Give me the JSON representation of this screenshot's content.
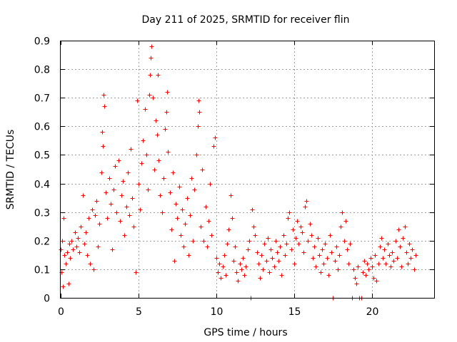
{
  "chart_data": {
    "type": "scatter",
    "title": "Day 211 of 2025, SRMTID for receiver flin",
    "xlabel": "GPS time / hours",
    "ylabel": "SRMTID / TECUs",
    "xlim": [
      0,
      24
    ],
    "ylim": [
      0,
      0.9
    ],
    "x_ticks": [
      0,
      5,
      10,
      15,
      20
    ],
    "x_tick_labels": [
      "0",
      "5",
      "10",
      "15",
      "20"
    ],
    "y_ticks": [
      0,
      0.1,
      0.2,
      0.3,
      0.4,
      0.5,
      0.6,
      0.7,
      0.8,
      0.9
    ],
    "y_tick_labels": [
      "0",
      "0.1",
      "0.2",
      "0.3",
      "0.4",
      "0.5",
      "0.6",
      "0.7",
      "0.8",
      "0.9"
    ],
    "grid": true,
    "marker": "plus",
    "color": "#ff0000",
    "series": [
      {
        "name": "SRMTID",
        "points": [
          [
            0.0,
            0.17
          ],
          [
            0.05,
            0.09
          ],
          [
            0.1,
            0.2
          ],
          [
            0.15,
            0.04
          ],
          [
            0.2,
            0.28
          ],
          [
            0.25,
            0.15
          ],
          [
            0.3,
            0.12
          ],
          [
            0.4,
            0.16
          ],
          [
            0.5,
            0.05
          ],
          [
            0.55,
            0.19
          ],
          [
            0.6,
            0.14
          ],
          [
            0.7,
            0.2
          ],
          [
            0.8,
            0.17
          ],
          [
            0.9,
            0.23
          ],
          [
            1.0,
            0.18
          ],
          [
            1.1,
            0.21
          ],
          [
            1.2,
            0.16
          ],
          [
            1.3,
            0.25
          ],
          [
            1.4,
            0.36
          ],
          [
            1.5,
            0.19
          ],
          [
            1.6,
            0.23
          ],
          [
            1.7,
            0.15
          ],
          [
            1.8,
            0.28
          ],
          [
            1.9,
            0.12
          ],
          [
            2.0,
            0.31
          ],
          [
            2.1,
            0.1
          ],
          [
            2.2,
            0.29
          ],
          [
            2.3,
            0.34
          ],
          [
            2.4,
            0.18
          ],
          [
            2.5,
            0.26
          ],
          [
            2.6,
            0.44
          ],
          [
            2.65,
            0.58
          ],
          [
            2.7,
            0.53
          ],
          [
            2.75,
            0.71
          ],
          [
            2.8,
            0.67
          ],
          [
            2.9,
            0.37
          ],
          [
            3.0,
            0.28
          ],
          [
            3.1,
            0.42
          ],
          [
            3.2,
            0.33
          ],
          [
            3.3,
            0.17
          ],
          [
            3.4,
            0.38
          ],
          [
            3.5,
            0.46
          ],
          [
            3.6,
            0.3
          ],
          [
            3.7,
            0.48
          ],
          [
            3.8,
            0.27
          ],
          [
            3.9,
            0.36
          ],
          [
            4.0,
            0.41
          ],
          [
            4.1,
            0.22
          ],
          [
            4.2,
            0.32
          ],
          [
            4.3,
            0.44
          ],
          [
            4.4,
            0.29
          ],
          [
            4.5,
            0.52
          ],
          [
            4.6,
            0.35
          ],
          [
            4.7,
            0.25
          ],
          [
            4.8,
            0.09
          ],
          [
            4.9,
            0.69
          ],
          [
            5.0,
            0.4
          ],
          [
            5.1,
            0.31
          ],
          [
            5.2,
            0.47
          ],
          [
            5.3,
            0.55
          ],
          [
            5.4,
            0.66
          ],
          [
            5.5,
            0.5
          ],
          [
            5.6,
            0.38
          ],
          [
            5.7,
            0.71
          ],
          [
            5.75,
            0.78
          ],
          [
            5.8,
            0.84
          ],
          [
            5.85,
            0.88
          ],
          [
            5.9,
            0.7
          ],
          [
            6.0,
            0.45
          ],
          [
            6.1,
            0.62
          ],
          [
            6.2,
            0.57
          ],
          [
            6.25,
            0.78
          ],
          [
            6.3,
            0.48
          ],
          [
            6.4,
            0.36
          ],
          [
            6.5,
            0.3
          ],
          [
            6.6,
            0.42
          ],
          [
            6.7,
            0.59
          ],
          [
            6.8,
            0.65
          ],
          [
            6.85,
            0.72
          ],
          [
            6.9,
            0.51
          ],
          [
            7.0,
            0.37
          ],
          [
            7.1,
            0.24
          ],
          [
            7.2,
            0.44
          ],
          [
            7.3,
            0.13
          ],
          [
            7.4,
            0.33
          ],
          [
            7.5,
            0.28
          ],
          [
            7.6,
            0.39
          ],
          [
            7.7,
            0.22
          ],
          [
            7.8,
            0.31
          ],
          [
            7.9,
            0.18
          ],
          [
            8.0,
            0.26
          ],
          [
            8.1,
            0.35
          ],
          [
            8.2,
            0.15
          ],
          [
            8.3,
            0.29
          ],
          [
            8.4,
            0.42
          ],
          [
            8.5,
            0.2
          ],
          [
            8.6,
            0.38
          ],
          [
            8.7,
            0.5
          ],
          [
            8.8,
            0.6
          ],
          [
            8.85,
            0.69
          ],
          [
            8.9,
            0.65
          ],
          [
            9.0,
            0.25
          ],
          [
            9.1,
            0.45
          ],
          [
            9.2,
            0.2
          ],
          [
            9.3,
            0.32
          ],
          [
            9.4,
            0.18
          ],
          [
            9.5,
            0.27
          ],
          [
            9.6,
            0.4
          ],
          [
            9.7,
            0.22
          ],
          [
            9.8,
            0.53
          ],
          [
            9.9,
            0.56
          ],
          [
            10.0,
            0.14
          ],
          [
            10.1,
            0.09
          ],
          [
            10.2,
            0.12
          ],
          [
            10.3,
            0.07
          ],
          [
            10.4,
            0.11
          ],
          [
            10.5,
            0.15
          ],
          [
            10.6,
            0.08
          ],
          [
            10.7,
            0.19
          ],
          [
            10.8,
            0.24
          ],
          [
            10.9,
            0.36
          ],
          [
            11.0,
            0.28
          ],
          [
            11.1,
            0.13
          ],
          [
            11.2,
            0.18
          ],
          [
            11.3,
            0.09
          ],
          [
            11.4,
            0.06
          ],
          [
            11.5,
            0.12
          ],
          [
            11.6,
            0.1
          ],
          [
            11.7,
            0.14
          ],
          [
            11.8,
            0.08
          ],
          [
            11.9,
            0.11
          ],
          [
            12.0,
            0.17
          ],
          [
            12.1,
            0.2
          ],
          [
            12.2,
            0.0
          ],
          [
            12.3,
            0.31
          ],
          [
            12.4,
            0.25
          ],
          [
            12.5,
            0.22
          ],
          [
            12.6,
            0.16
          ],
          [
            12.7,
            0.12
          ],
          [
            12.8,
            0.07
          ],
          [
            12.9,
            0.15
          ],
          [
            13.0,
            0.1
          ],
          [
            13.1,
            0.19
          ],
          [
            13.2,
            0.13
          ],
          [
            13.3,
            0.21
          ],
          [
            13.4,
            0.09
          ],
          [
            13.5,
            0.17
          ],
          [
            13.6,
            0.14
          ],
          [
            13.7,
            0.11
          ],
          [
            13.8,
            0.2
          ],
          [
            13.9,
            0.16
          ],
          [
            14.0,
            0.13
          ],
          [
            14.1,
            0.18
          ],
          [
            14.2,
            0.08
          ],
          [
            14.3,
            0.22
          ],
          [
            14.4,
            0.15
          ],
          [
            14.5,
            0.19
          ],
          [
            14.6,
            0.28
          ],
          [
            14.7,
            0.3
          ],
          [
            14.8,
            0.17
          ],
          [
            14.9,
            0.24
          ],
          [
            15.0,
            0.12
          ],
          [
            15.1,
            0.21
          ],
          [
            15.2,
            0.27
          ],
          [
            15.3,
            0.19
          ],
          [
            15.4,
            0.25
          ],
          [
            15.5,
            0.23
          ],
          [
            15.6,
            0.16
          ],
          [
            15.7,
            0.32
          ],
          [
            15.8,
            0.34
          ],
          [
            15.9,
            0.2
          ],
          [
            16.0,
            0.26
          ],
          [
            16.1,
            0.22
          ],
          [
            16.2,
            0.14
          ],
          [
            16.3,
            0.18
          ],
          [
            16.4,
            0.11
          ],
          [
            16.5,
            0.21
          ],
          [
            16.6,
            0.15
          ],
          [
            16.7,
            0.09
          ],
          [
            16.8,
            0.17
          ],
          [
            16.9,
            0.12
          ],
          [
            17.0,
            0.19
          ],
          [
            17.1,
            0.14
          ],
          [
            17.2,
            0.08
          ],
          [
            17.3,
            0.22
          ],
          [
            17.4,
            0.16
          ],
          [
            17.5,
            0.0
          ],
          [
            17.6,
            0.13
          ],
          [
            17.7,
            0.18
          ],
          [
            17.8,
            0.1
          ],
          [
            17.9,
            0.15
          ],
          [
            18.0,
            0.25
          ],
          [
            18.1,
            0.3
          ],
          [
            18.2,
            0.2
          ],
          [
            18.3,
            0.27
          ],
          [
            18.4,
            0.17
          ],
          [
            18.5,
            0.12
          ],
          [
            18.6,
            0.19
          ],
          [
            18.7,
            0.0
          ],
          [
            18.8,
            0.1
          ],
          [
            18.9,
            0.07
          ],
          [
            19.0,
            0.05
          ],
          [
            19.1,
            0.11
          ],
          [
            19.2,
            0.0
          ],
          [
            19.3,
            0.0
          ],
          [
            19.4,
            0.09
          ],
          [
            19.5,
            0.13
          ],
          [
            19.6,
            0.08
          ],
          [
            19.7,
            0.12
          ],
          [
            19.8,
            0.1
          ],
          [
            19.9,
            0.14
          ],
          [
            20.0,
            0.11
          ],
          [
            20.1,
            0.07
          ],
          [
            20.2,
            0.15
          ],
          [
            20.3,
            0.06
          ],
          [
            20.4,
            0.12
          ],
          [
            20.5,
            0.18
          ],
          [
            20.6,
            0.21
          ],
          [
            20.7,
            0.14
          ],
          [
            20.8,
            0.17
          ],
          [
            20.9,
            0.12
          ],
          [
            21.0,
            0.19
          ],
          [
            21.1,
            0.15
          ],
          [
            21.2,
            0.11
          ],
          [
            21.3,
            0.16
          ],
          [
            21.4,
            0.13
          ],
          [
            21.5,
            0.2
          ],
          [
            21.6,
            0.14
          ],
          [
            21.7,
            0.24
          ],
          [
            21.8,
            0.18
          ],
          [
            21.9,
            0.11
          ],
          [
            22.0,
            0.21
          ],
          [
            22.1,
            0.25
          ],
          [
            22.2,
            0.16
          ],
          [
            22.3,
            0.12
          ],
          [
            22.4,
            0.19
          ],
          [
            22.5,
            0.14
          ],
          [
            22.6,
            0.17
          ],
          [
            22.7,
            0.1
          ],
          [
            22.8,
            0.15
          ]
        ]
      }
    ]
  }
}
